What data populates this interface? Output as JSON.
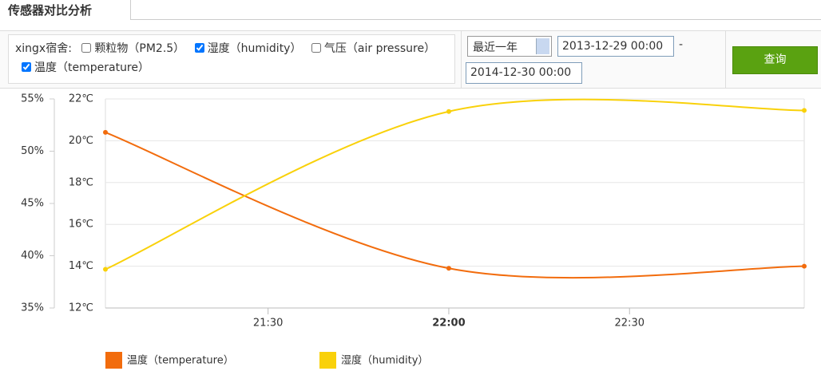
{
  "tab": {
    "title": "传感器对比分析"
  },
  "filter": {
    "label": "xingx宿舍:",
    "options": [
      {
        "label": "颗粒物（PM2.5）",
        "checked": false
      },
      {
        "label": "湿度（humidity）",
        "checked": true
      },
      {
        "label": "气压（air pressure）",
        "checked": false
      },
      {
        "label": "温度（temperature）",
        "checked": true
      }
    ],
    "range": "最近一年",
    "start": "2013-12-29 00:00",
    "separator": "-",
    "end": "2014-12-30 00:00",
    "button": "查询"
  },
  "chart_data": {
    "type": "line",
    "smooth": true,
    "x": [
      "21:03",
      "22:00",
      "22:59"
    ],
    "xlim": [
      "21:03",
      "22:59"
    ],
    "xticks": [
      "21:30",
      "22:00",
      "22:30"
    ],
    "ylim": [
      35,
      55
    ],
    "yticks": [
      {
        "value": 35,
        "label": "35%"
      },
      {
        "value": 40,
        "label": "40%"
      },
      {
        "value": 45,
        "label": "45%"
      },
      {
        "value": 50,
        "label": "50%"
      },
      {
        "value": 55,
        "label": "55%"
      }
    ],
    "y2lim": [
      12,
      22
    ],
    "y2ticks": [
      {
        "value": 12,
        "label": "12℃"
      },
      {
        "value": 14,
        "label": "14℃"
      },
      {
        "value": 16,
        "label": "16℃"
      },
      {
        "value": 18,
        "label": "18℃"
      },
      {
        "value": 20,
        "label": "20℃"
      },
      {
        "value": 22,
        "label": "22℃"
      }
    ],
    "grid": true,
    "series": [
      {
        "name": "温度（temperature）",
        "color": "#f26c0d",
        "axis": "y2",
        "values": [
          20.4,
          13.9,
          14.0
        ]
      },
      {
        "name": "湿度（humidity）",
        "color": "#f9d10a",
        "values": [
          38.7,
          53.8,
          53.9
        ]
      }
    ]
  }
}
